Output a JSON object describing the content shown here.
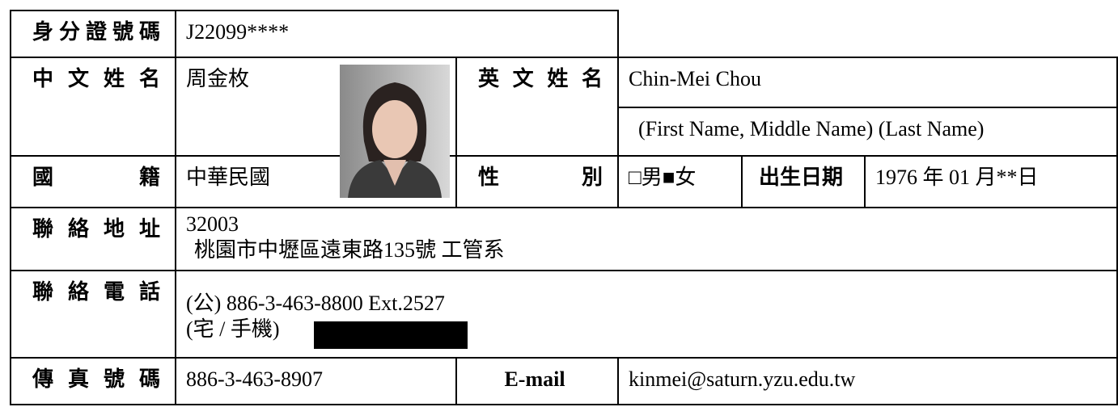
{
  "form": {
    "id_label": "身分證號碼",
    "id_value": "J22099****",
    "chinese_name_label": "中文姓名",
    "chinese_name": "周金枚",
    "english_name_label": "英文姓名",
    "english_name": "Chin-Mei Chou",
    "english_name_hint": "(First Name, Middle Name) (Last Name)",
    "nationality_label": "國籍",
    "nationality": "中華民國",
    "gender_label": "性別",
    "gender": "□男■女",
    "birth_label": "出生日期",
    "birth_date": "1976 年 01 月**日",
    "address_label": "聯絡地址",
    "address_zip": "32003",
    "address": "桃園市中壢區遠東路135號 工管系",
    "phone_label": "聯絡電話",
    "phone_office": "(公) 886-3-463-8800 Ext.2527",
    "phone_home_label": "(宅 / 手機)",
    "fax_label": "傳真號碼",
    "fax": "886-3-463-8907",
    "email_label": "E-mail",
    "email": "kinmei@saturn.yzu.edu.tw"
  }
}
